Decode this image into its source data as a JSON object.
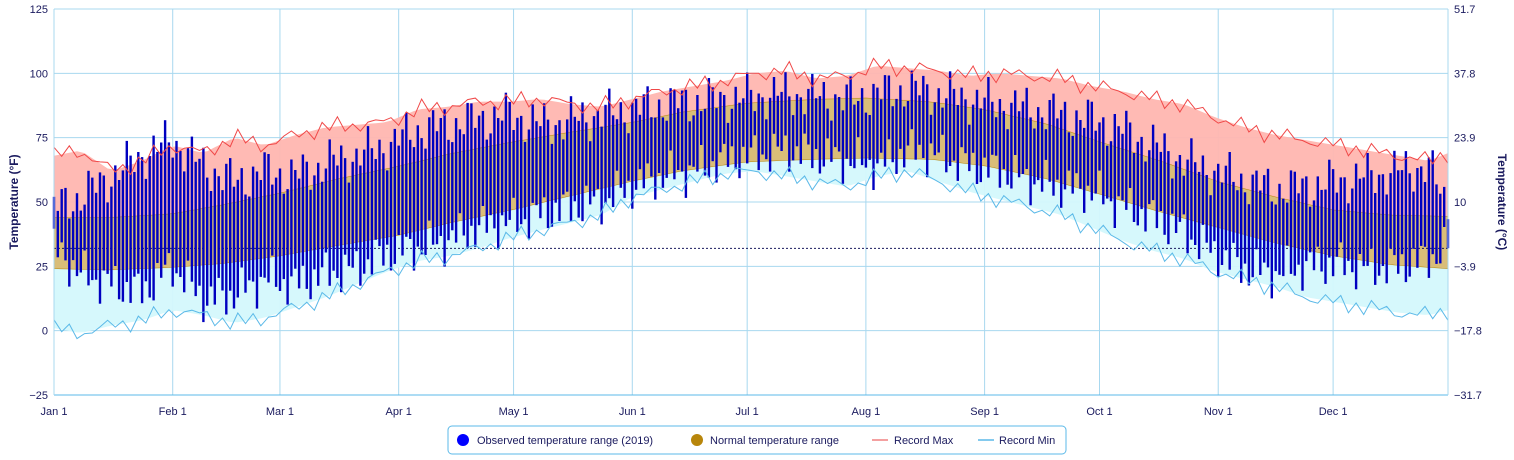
{
  "chart_data": {
    "type": "area",
    "xlabel": "",
    "ylabel_left": "Temperature (°F)",
    "ylabel_right": "Temperature (°C)",
    "ylim": [
      -25,
      125
    ],
    "y_ticks_f": [
      "125",
      "100",
      "75",
      "50",
      "25",
      "0",
      "−25"
    ],
    "y_ticks_c": [
      "51.7",
      "37.8",
      "23.9",
      "10",
      "−3.9",
      "−17.8",
      "−31.7"
    ],
    "x_ticks": [
      "Jan 1",
      "Feb 1",
      "Mar 1",
      "Apr 1",
      "May 1",
      "Jun 1",
      "Jul 1",
      "Aug 1",
      "Sep 1",
      "Oct 1",
      "Nov 1",
      "Dec 1"
    ],
    "x_tick_days": [
      1,
      32,
      60,
      91,
      121,
      152,
      182,
      213,
      244,
      274,
      305,
      335
    ],
    "freezing_line_f": 32,
    "grid": true,
    "legend_position": "bottom-center",
    "legend": [
      "Observed temperature range (2019)",
      "Normal temperature range",
      "Record Max",
      "Record Min"
    ],
    "series": [
      {
        "name": "Normal temperature range",
        "kind": "band",
        "color": "#b8860b",
        "x": [
          1,
          15,
          32,
          45,
          60,
          75,
          91,
          105,
          121,
          135,
          152,
          165,
          182,
          200,
          213,
          230,
          244,
          260,
          274,
          290,
          305,
          320,
          335,
          350,
          365
        ],
        "low": [
          24,
          23.5,
          24.5,
          26,
          29,
          33,
          37,
          42,
          47,
          52,
          58,
          62,
          65.5,
          66.5,
          67,
          66.5,
          64,
          59,
          53,
          46,
          40,
          34,
          29,
          25.5,
          24
        ],
        "high": [
          44,
          44,
          45.5,
          49,
          53.5,
          59,
          64,
          69,
          73.5,
          77,
          81,
          85,
          88.5,
          90,
          90.5,
          89,
          86,
          80.5,
          73.5,
          66,
          58,
          52,
          47,
          45,
          44.5
        ]
      },
      {
        "name": "Record Max",
        "kind": "line",
        "color": "#f08080",
        "x": [
          1,
          8,
          16,
          24,
          32,
          40,
          48,
          56,
          64,
          72,
          80,
          88,
          96,
          104,
          112,
          120,
          128,
          136,
          144,
          152,
          160,
          168,
          176,
          184,
          192,
          200,
          208,
          216,
          224,
          232,
          240,
          248,
          256,
          264,
          272,
          280,
          288,
          296,
          304,
          312,
          320,
          328,
          336,
          344,
          352,
          360,
          365
        ],
        "values": [
          68,
          70,
          62,
          66,
          72,
          69,
          75,
          72,
          76,
          79,
          80,
          81,
          86,
          87,
          89,
          89,
          90,
          88,
          87,
          90,
          93,
          95,
          97,
          100,
          101,
          98,
          99,
          103,
          102,
          101,
          99,
          100,
          99,
          98,
          95,
          93,
          90,
          88,
          83,
          79,
          76,
          74,
          72,
          70,
          68,
          66,
          69
        ]
      },
      {
        "name": "Record Min",
        "kind": "line",
        "color": "#5bb9e8",
        "x": [
          1,
          8,
          16,
          24,
          32,
          40,
          48,
          56,
          64,
          72,
          80,
          88,
          96,
          104,
          112,
          120,
          128,
          136,
          144,
          152,
          160,
          168,
          176,
          184,
          192,
          200,
          208,
          216,
          224,
          232,
          240,
          248,
          256,
          264,
          272,
          280,
          288,
          296,
          304,
          312,
          320,
          328,
          336,
          344,
          352,
          360,
          365
        ],
        "values": [
          1,
          -1,
          2,
          4,
          8,
          6,
          3,
          5,
          9,
          13,
          18,
          23,
          27,
          29,
          32,
          36,
          39,
          42,
          45,
          52,
          55,
          58,
          61,
          62,
          60,
          58,
          56,
          60,
          62,
          58,
          54,
          51,
          48,
          45,
          40,
          35,
          31,
          28,
          23,
          20,
          17,
          13,
          11,
          9,
          7,
          6,
          8
        ]
      },
      {
        "name": "Observed temperature range (2019)",
        "kind": "range_bars",
        "color": "#0000c0",
        "x": [
          1,
          8,
          16,
          24,
          32,
          40,
          48,
          56,
          64,
          72,
          80,
          88,
          96,
          104,
          112,
          120,
          128,
          136,
          144,
          152,
          160,
          168,
          176,
          184,
          192,
          200,
          208,
          216,
          224,
          232,
          240,
          248,
          256,
          264,
          272,
          280,
          288,
          296,
          304,
          312,
          320,
          328,
          336,
          344,
          352,
          360,
          365
        ],
        "low": [
          32,
          22,
          18,
          15,
          25,
          12,
          14,
          20,
          18,
          22,
          24,
          30,
          32,
          35,
          40,
          42,
          45,
          48,
          50,
          56,
          60,
          62,
          66,
          68,
          70,
          68,
          66,
          64,
          70,
          68,
          64,
          62,
          58,
          56,
          54,
          48,
          44,
          38,
          30,
          24,
          22,
          25,
          26,
          24,
          25,
          28,
          32
        ],
        "high": [
          48,
          52,
          60,
          68,
          74,
          64,
          58,
          62,
          60,
          65,
          68,
          72,
          78,
          80,
          82,
          84,
          80,
          82,
          84,
          86,
          88,
          89,
          90,
          91,
          92,
          91,
          90,
          92,
          94,
          92,
          90,
          88,
          86,
          84,
          82,
          78,
          72,
          66,
          62,
          58,
          55,
          56,
          58,
          60,
          62,
          64,
          48
        ]
      }
    ]
  }
}
